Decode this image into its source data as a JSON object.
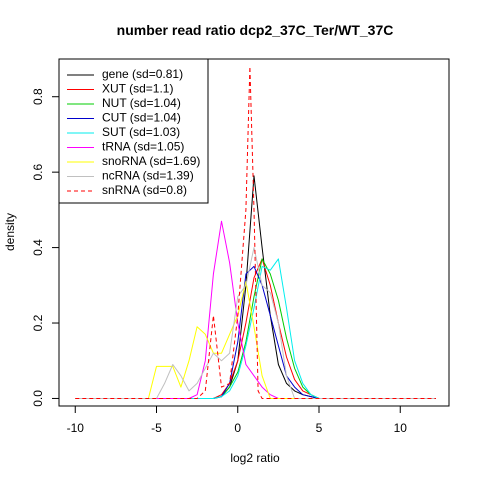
{
  "chart_data": {
    "type": "line",
    "title": "number read ratio dcp2_37C_Ter/WT_37C",
    "xlabel": "log2 ratio",
    "ylabel": "density",
    "xlim": [
      -11,
      13
    ],
    "ylim": [
      -0.02,
      0.9
    ],
    "xticks": [
      -10,
      -5,
      0,
      5,
      10
    ],
    "yticks": [
      0.0,
      0.2,
      0.4,
      0.6,
      0.8
    ],
    "x_tick_labels": [
      "-10",
      "-5",
      "0",
      "5",
      "10"
    ],
    "y_tick_labels": [
      "0.0",
      "0.2",
      "0.4",
      "0.6",
      "0.8"
    ],
    "grid": false,
    "legend_position": "top-left",
    "series": [
      {
        "name": "gene (sd=0.81)",
        "color": "#000000",
        "dash": "solid",
        "x": [
          -10,
          -1.5,
          -1,
          -0.5,
          0,
          0.5,
          1,
          1.5,
          2,
          2.5,
          3,
          3.5,
          4,
          4.5,
          5,
          12.2
        ],
        "y": [
          0,
          0,
          0.005,
          0.03,
          0.1,
          0.3,
          0.59,
          0.4,
          0.22,
          0.09,
          0.04,
          0.02,
          0.01,
          0.005,
          0,
          0
        ]
      },
      {
        "name": "XUT (sd=1.1)",
        "color": "#ff0000",
        "dash": "solid",
        "x": [
          -10,
          -1.5,
          -1,
          -0.5,
          0,
          0.5,
          1,
          1.5,
          2,
          2.5,
          3,
          3.5,
          4,
          4.5,
          5,
          12.2
        ],
        "y": [
          0,
          0,
          0.01,
          0.04,
          0.1,
          0.2,
          0.32,
          0.37,
          0.3,
          0.2,
          0.11,
          0.05,
          0.02,
          0.01,
          0,
          0
        ]
      },
      {
        "name": "NUT (sd=1.04)",
        "color": "#00cc00",
        "dash": "solid",
        "x": [
          -10,
          -1.5,
          -1,
          -0.5,
          0,
          0.5,
          1,
          1.5,
          2,
          2.5,
          3,
          3.5,
          4,
          4.5,
          5,
          12.2
        ],
        "y": [
          0,
          0,
          0.005,
          0.03,
          0.07,
          0.15,
          0.27,
          0.37,
          0.33,
          0.26,
          0.16,
          0.08,
          0.03,
          0.01,
          0,
          0
        ]
      },
      {
        "name": "CUT (sd=1.04)",
        "color": "#0000cc",
        "dash": "solid",
        "x": [
          -10,
          -1.5,
          -1,
          -0.5,
          0,
          0.5,
          1,
          1.5,
          2,
          2.5,
          3,
          3.5,
          4,
          4.5,
          5,
          12.2
        ],
        "y": [
          0,
          0,
          0.005,
          0.04,
          0.15,
          0.33,
          0.35,
          0.3,
          0.22,
          0.14,
          0.06,
          0.03,
          0.01,
          0.005,
          0,
          0
        ]
      },
      {
        "name": "SUT (sd=1.03)",
        "color": "#00eeee",
        "dash": "solid",
        "x": [
          -10,
          -1.5,
          -1,
          -0.5,
          0,
          0.5,
          1,
          1.5,
          2,
          2.5,
          3,
          3.5,
          4,
          4.5,
          5,
          12.2
        ],
        "y": [
          0,
          0,
          0.005,
          0.02,
          0.06,
          0.14,
          0.24,
          0.35,
          0.34,
          0.37,
          0.24,
          0.1,
          0.04,
          0.01,
          0,
          0
        ]
      },
      {
        "name": "tRNA (sd=1.05)",
        "color": "#ff00ff",
        "dash": "solid",
        "x": [
          -10,
          -3,
          -2.5,
          -2,
          -1.5,
          -1,
          -0.5,
          0,
          0.5,
          1,
          1.5,
          2,
          2.5,
          3,
          3.5,
          12.2
        ],
        "y": [
          0,
          0,
          0.01,
          0.1,
          0.33,
          0.47,
          0.36,
          0.2,
          0.09,
          0.06,
          0.03,
          0.01,
          0,
          0,
          0,
          0
        ]
      },
      {
        "name": "snoRNA (sd=1.69)",
        "color": "#ffff00",
        "dash": "solid",
        "x": [
          -10,
          -5.5,
          -5,
          -4.5,
          -4,
          -3.5,
          -3,
          -2.5,
          -2,
          -1.5,
          -1,
          -0.5,
          0,
          0.5,
          1,
          1.5,
          2,
          12.2
        ],
        "y": [
          0,
          0,
          0.085,
          0.085,
          0.085,
          0.03,
          0.1,
          0.19,
          0.17,
          0.12,
          0.12,
          0.17,
          0.22,
          0.31,
          0.19,
          0.06,
          0,
          0
        ]
      },
      {
        "name": "ncRNA (sd=1.39)",
        "color": "#c0c0c0",
        "dash": "solid",
        "x": [
          -10,
          -5,
          -4.5,
          -4,
          -3.5,
          -3,
          -2.5,
          -2,
          -1.5,
          -1,
          -0.5,
          0,
          0.5,
          1,
          1.5,
          2,
          2.5,
          3,
          3.5,
          12.2
        ],
        "y": [
          0,
          0,
          0.04,
          0.09,
          0.06,
          0.02,
          0.04,
          0.08,
          0.12,
          0.1,
          0.12,
          0.27,
          0.3,
          0.4,
          0.3,
          0.28,
          0.2,
          0.06,
          0,
          0
        ]
      },
      {
        "name": "snRNA (sd=0.8)",
        "color": "#ff0000",
        "dash": "dashed",
        "x": [
          -10,
          -2.5,
          -2,
          -1.5,
          -1,
          -0.5,
          0,
          0.5,
          0.75,
          1,
          1.25,
          1.5,
          12.2
        ],
        "y": [
          0,
          0,
          0.02,
          0.22,
          0.03,
          0.04,
          0.22,
          0.5,
          0.88,
          0.5,
          0.02,
          0,
          0
        ]
      }
    ]
  }
}
